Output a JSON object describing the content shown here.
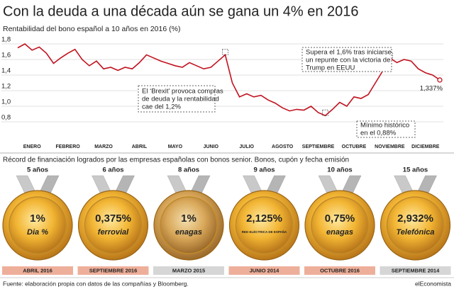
{
  "chart_data": {
    "type": "line",
    "title": "Con la deuda a una década aún se gana un 4% en 2016",
    "subtitle": "Rentabilidad del bono español a 10 años en 2016 (%)",
    "categories": [
      null,
      null,
      "ENERO",
      null,
      null,
      null,
      null,
      "FEBRERO",
      null,
      null,
      null,
      null,
      "MARZO",
      null,
      null,
      null,
      null,
      "ABRIL",
      null,
      null,
      null,
      null,
      "MAYO",
      null,
      null,
      null,
      null,
      "JUNIO",
      null,
      null,
      null,
      null,
      "JULIO",
      null,
      null,
      null,
      null,
      "AGOSTO",
      null,
      null,
      null,
      null,
      "SEPTIEMBRE",
      null,
      null,
      null,
      null,
      "OCTUBRE",
      null,
      null,
      null,
      null,
      "NOVIEMBRE",
      null,
      null,
      null,
      null,
      "DICIEMBRE",
      null,
      null
    ],
    "values": [
      1.75,
      1.8,
      1.72,
      1.76,
      1.68,
      1.55,
      1.62,
      1.68,
      1.73,
      1.6,
      1.52,
      1.58,
      1.48,
      1.5,
      1.46,
      1.5,
      1.48,
      1.56,
      1.66,
      1.62,
      1.58,
      1.55,
      1.52,
      1.5,
      1.56,
      1.52,
      1.48,
      1.5,
      1.58,
      1.66,
      1.3,
      1.12,
      1.16,
      1.12,
      1.14,
      1.08,
      1.04,
      0.98,
      0.94,
      0.96,
      0.95,
      1.0,
      0.92,
      0.88,
      0.96,
      1.05,
      1.0,
      1.12,
      1.1,
      1.15,
      1.3,
      1.45,
      1.62,
      1.56,
      1.6,
      1.58,
      1.48,
      1.43,
      1.4,
      1.337
    ],
    "value_labels": [
      null,
      null,
      null,
      null,
      null,
      null,
      null,
      null,
      null,
      null,
      null,
      null,
      null,
      null,
      null,
      null,
      null,
      null,
      null,
      null,
      null,
      null,
      null,
      null,
      null,
      null,
      null,
      null,
      null,
      null,
      null,
      null,
      null,
      null,
      null,
      null,
      null,
      null,
      null,
      null,
      null,
      null,
      null,
      null,
      null,
      null,
      null,
      null,
      null,
      null,
      null,
      null,
      null,
      null,
      null,
      null,
      null,
      null,
      null,
      "1,337%"
    ],
    "color": "#c1121f",
    "ylim": [
      0.8,
      1.8
    ],
    "yticks": [
      {
        "value": 0.8,
        "label": "0,8"
      },
      {
        "value": 1.0,
        "label": "1,0"
      },
      {
        "value": 1.2,
        "label": "1,2"
      },
      {
        "value": 1.4,
        "label": "1,4"
      },
      {
        "value": 1.6,
        "label": "1,6"
      },
      {
        "value": 1.8,
        "label": "1,8"
      }
    ],
    "grid": true,
    "annotations": [
      [
        "El ‘Brexit’ provoca compras",
        "de deuda y la rentabilidad",
        "cae del 1,2%"
      ],
      [
        "Supera el 1,6% tras iniciarse",
        "un repunte con la victoria de",
        "Trump en EEUU"
      ],
      [
        "Mínimo histórico",
        "en el 0,88%"
      ]
    ]
  },
  "records": {
    "heading": "Récord de financiación logrados por las empresas españolas con bonos senior. Bonos, cupón y fecha emisión",
    "medals": [
      {
        "years": "5 años",
        "rate": "1%",
        "company": "Dia %",
        "date": "ABRIL 2016"
      },
      {
        "years": "6 años",
        "rate": "0,375%",
        "company": "ferrovial",
        "date": "SEPTIEMBRE 2016"
      },
      {
        "years": "8 años",
        "rate": "1%",
        "company": "enagas",
        "date": "MARZO 2015"
      },
      {
        "years": "9 años",
        "rate": "2,125%",
        "company": "RED ELÉCTRICA DE ESPAÑA",
        "date": "JUNIO 2014"
      },
      {
        "years": "10 años",
        "rate": "0,75%",
        "company": "enagas",
        "date": "OCTUBRE 2016"
      },
      {
        "years": "15 años",
        "rate": "2,932%",
        "company": "Telefónica",
        "date": "SEPTIEMBRE 2014"
      }
    ]
  },
  "footer": {
    "source": "Fuente: elaboración propia con datos de las compañías y Bloomberg.",
    "brand": "elEconomista"
  }
}
